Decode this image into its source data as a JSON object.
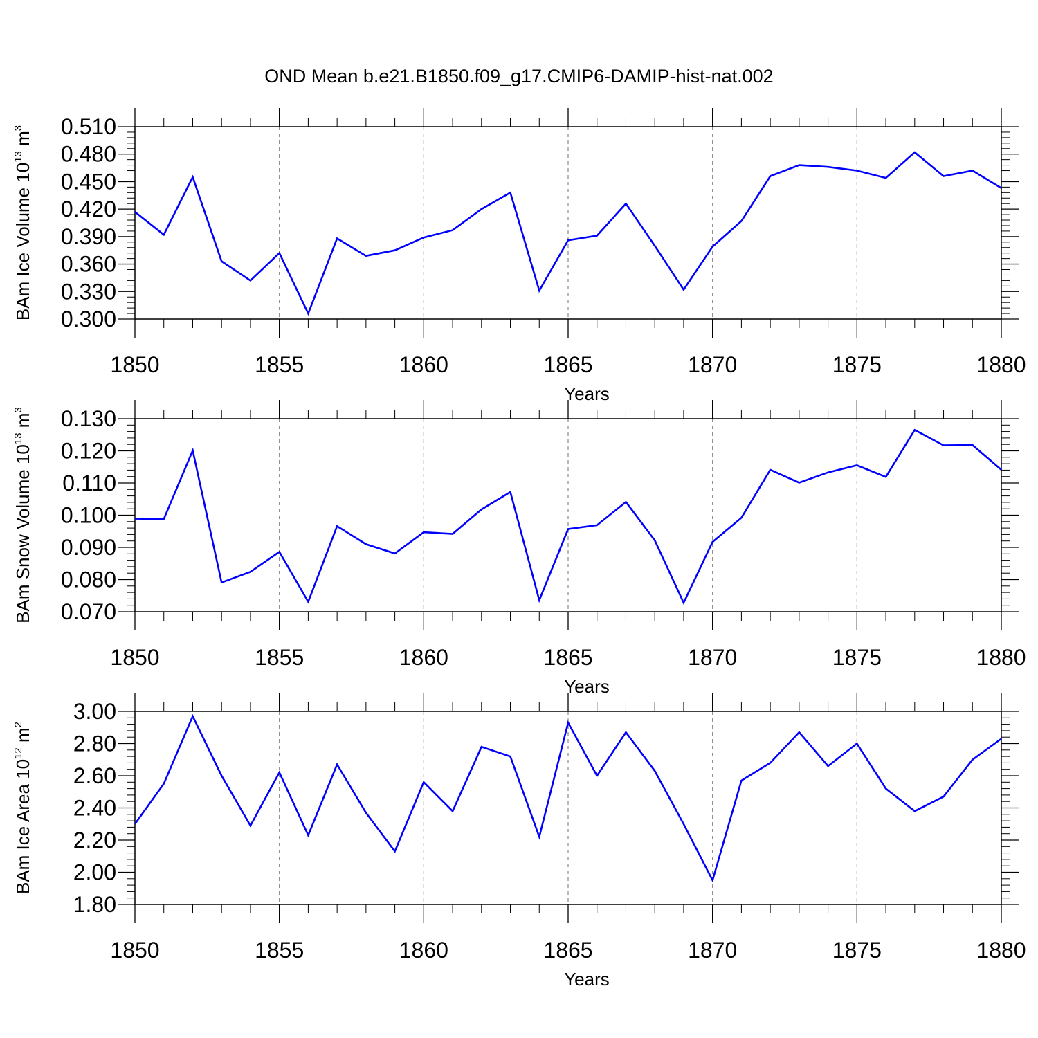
{
  "figure": {
    "title": "OND Mean b.e21.B1850.f09_g17.CMIP6-DAMIP-hist-nat.002"
  },
  "chart_data": [
    {
      "type": "line",
      "ylabel": "BAm Ice Volume 10",
      "ylabel_exp": "13",
      "ylabel_unit": " m",
      "ylabel_unit_exp": "3",
      "xlabel": "Years",
      "xlim": [
        1850,
        1880
      ],
      "ylim": [
        0.3,
        0.51
      ],
      "yticks": [
        "0.300",
        "0.330",
        "0.360",
        "0.390",
        "0.420",
        "0.450",
        "0.480",
        "0.510"
      ],
      "xticks": [
        "1850",
        "1855",
        "1860",
        "1865",
        "1870",
        "1875",
        "1880"
      ],
      "grid": "vertical dashed at major x ticks",
      "line_color": "#0000ff",
      "x": [
        1850,
        1851,
        1852,
        1853,
        1854,
        1855,
        1856,
        1857,
        1858,
        1859,
        1860,
        1861,
        1862,
        1863,
        1864,
        1865,
        1866,
        1867,
        1868,
        1869,
        1870,
        1871,
        1872,
        1873,
        1874,
        1875,
        1876,
        1877,
        1878,
        1879,
        1880
      ],
      "values": [
        0.417,
        0.392,
        0.455,
        0.363,
        0.342,
        0.372,
        0.306,
        0.388,
        0.369,
        0.375,
        0.389,
        0.397,
        0.42,
        0.438,
        0.331,
        0.386,
        0.391,
        0.426,
        0.38,
        0.332,
        0.379,
        0.407,
        0.456,
        0.468,
        0.466,
        0.462,
        0.454,
        0.482,
        0.456,
        0.462,
        0.443
      ]
    },
    {
      "type": "line",
      "ylabel": "BAm Snow Volume 10",
      "ylabel_exp": "13",
      "ylabel_unit": " m",
      "ylabel_unit_exp": "3",
      "xlabel": "Years",
      "xlim": [
        1850,
        1880
      ],
      "ylim": [
        0.07,
        0.13
      ],
      "yticks": [
        "0.070",
        "0.080",
        "0.090",
        "0.100",
        "0.110",
        "0.120",
        "0.130"
      ],
      "xticks": [
        "1850",
        "1855",
        "1860",
        "1865",
        "1870",
        "1875",
        "1880"
      ],
      "grid": "vertical dashed at major x ticks",
      "line_color": "#0000ff",
      "x": [
        1850,
        1851,
        1852,
        1853,
        1854,
        1855,
        1856,
        1857,
        1858,
        1859,
        1860,
        1861,
        1862,
        1863,
        1864,
        1865,
        1866,
        1867,
        1868,
        1869,
        1870,
        1871,
        1872,
        1873,
        1874,
        1875,
        1876,
        1877,
        1878,
        1879,
        1880
      ],
      "values": [
        0.0989,
        0.0988,
        0.1201,
        0.0791,
        0.0824,
        0.0886,
        0.0731,
        0.0966,
        0.091,
        0.0881,
        0.0947,
        0.0942,
        0.1018,
        0.1072,
        0.0736,
        0.0957,
        0.0969,
        0.1041,
        0.0922,
        0.0728,
        0.0917,
        0.0992,
        0.1141,
        0.1101,
        0.1133,
        0.1155,
        0.1119,
        0.1265,
        0.1217,
        0.1218,
        0.1141
      ]
    },
    {
      "type": "line",
      "ylabel": "BAm Ice Area 10",
      "ylabel_exp": "12",
      "ylabel_unit": " m",
      "ylabel_unit_exp": "2",
      "xlabel": "Years",
      "xlim": [
        1850,
        1880
      ],
      "ylim": [
        1.8,
        3.0
      ],
      "yticks": [
        "1.80",
        "2.00",
        "2.20",
        "2.40",
        "2.60",
        "2.80",
        "3.00"
      ],
      "xticks": [
        "1850",
        "1855",
        "1860",
        "1865",
        "1870",
        "1875",
        "1880"
      ],
      "grid": "vertical dashed at major x ticks",
      "line_color": "#0000ff",
      "x": [
        1850,
        1851,
        1852,
        1853,
        1854,
        1855,
        1856,
        1857,
        1858,
        1859,
        1860,
        1861,
        1862,
        1863,
        1864,
        1865,
        1866,
        1867,
        1868,
        1869,
        1870,
        1871,
        1872,
        1873,
        1874,
        1875,
        1876,
        1877,
        1878,
        1879,
        1880
      ],
      "values": [
        2.3,
        2.55,
        2.97,
        2.6,
        2.29,
        2.62,
        2.23,
        2.67,
        2.37,
        2.13,
        2.56,
        2.38,
        2.78,
        2.72,
        2.22,
        2.93,
        2.6,
        2.87,
        2.63,
        2.3,
        1.95,
        2.57,
        2.68,
        2.87,
        2.66,
        2.8,
        2.52,
        2.38,
        2.47,
        2.7,
        2.83
      ]
    }
  ]
}
